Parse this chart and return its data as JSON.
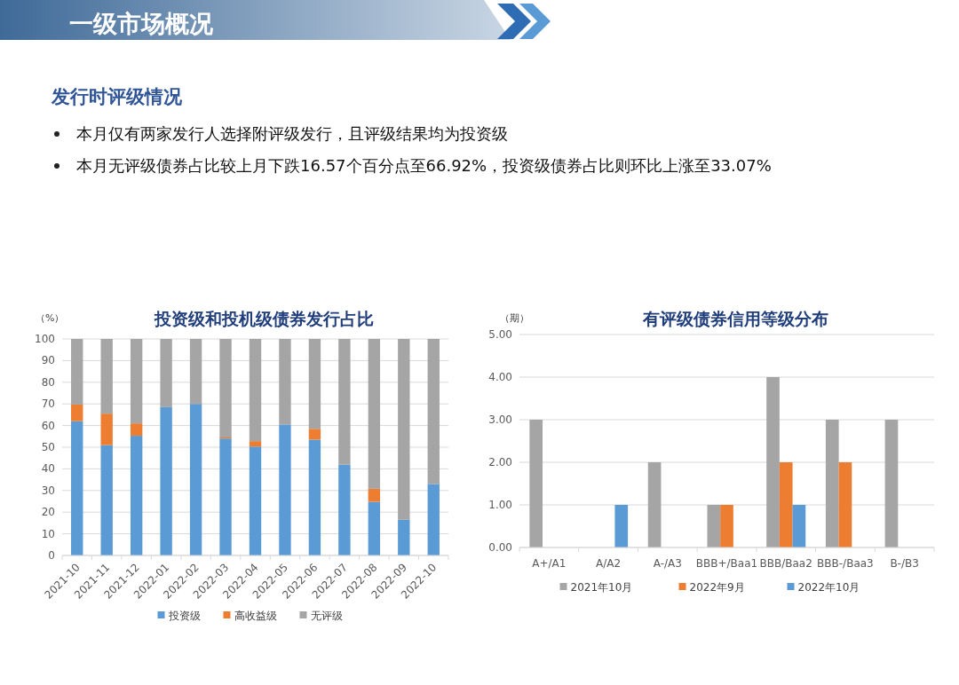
{
  "chart_data": [
    {
      "type": "other",
      "title": "一级市场概况",
      "subtitle": "发行时评级情况",
      "annotations": [
        "本月仅有两家发行人选择附评级发行，且评级结果均为投资级",
        "本月无评级债券占比较上月下跌16.57个百分点至66.92%，投资级债券占比则环比上涨至33.07%"
      ]
    },
    {
      "type": "bar",
      "title": "投资级和投机级债券发行占比",
      "ylabel": "（%）",
      "stacked": true,
      "grid": "y",
      "legend": "bottom",
      "ylim": [
        0,
        100
      ],
      "yticks": [
        0,
        10,
        20,
        30,
        40,
        50,
        60,
        70,
        80,
        90,
        100
      ],
      "categories": [
        "2021-10",
        "2021-11",
        "2021-12",
        "2022-01",
        "2022-02",
        "2022-03",
        "2022-04",
        "2022-05",
        "2022-06",
        "2022-07",
        "2022-08",
        "2022-09",
        "2022-10"
      ],
      "series": [
        {
          "name": "投资级",
          "color": "#5b9bd5",
          "values": [
            62,
            51,
            55.3,
            68.5,
            70,
            54,
            50.3,
            60.5,
            53.5,
            42,
            24.8,
            16.5,
            33
          ]
        },
        {
          "name": "高收益级",
          "color": "#ed7d31",
          "values": [
            7.7,
            14.5,
            5.7,
            0,
            0,
            0.5,
            2.5,
            0,
            5,
            0,
            6,
            0,
            0
          ]
        },
        {
          "name": "无评级",
          "color": "#a5a5a5",
          "values": [
            30.3,
            34.5,
            39,
            31.5,
            30,
            45.5,
            47.2,
            39.5,
            41.5,
            58,
            69.2,
            83.5,
            67
          ]
        }
      ]
    },
    {
      "type": "bar",
      "title": "有评级债券信用等级分布",
      "ylabel": "（期）",
      "grid": "y",
      "legend": "bottom",
      "ylim": [
        0,
        5
      ],
      "yticks": [
        {
          "value": 0,
          "label": "0.00"
        },
        {
          "value": 1,
          "label": "1.00"
        },
        {
          "value": 2,
          "label": "2.00"
        },
        {
          "value": 3,
          "label": "3.00"
        },
        {
          "value": 4,
          "label": "4.00"
        },
        {
          "value": 5,
          "label": "5.00"
        }
      ],
      "categories": [
        "A+/A1",
        "A/A2",
        "A-/A3",
        "BBB+/Baa1",
        "BBB/Baa2",
        "BBB-/Baa3",
        "B-/B3"
      ],
      "series": [
        {
          "name": "2021年10月",
          "color": "#a5a5a5",
          "values": [
            3,
            null,
            2,
            1,
            4,
            3,
            3
          ]
        },
        {
          "name": "2022年9月",
          "color": "#ed7d31",
          "values": [
            null,
            null,
            null,
            1,
            2,
            2,
            null
          ]
        },
        {
          "name": "2022年10月",
          "color": "#5b9bd5",
          "values": [
            null,
            1,
            null,
            null,
            1,
            null,
            null
          ]
        }
      ]
    }
  ]
}
